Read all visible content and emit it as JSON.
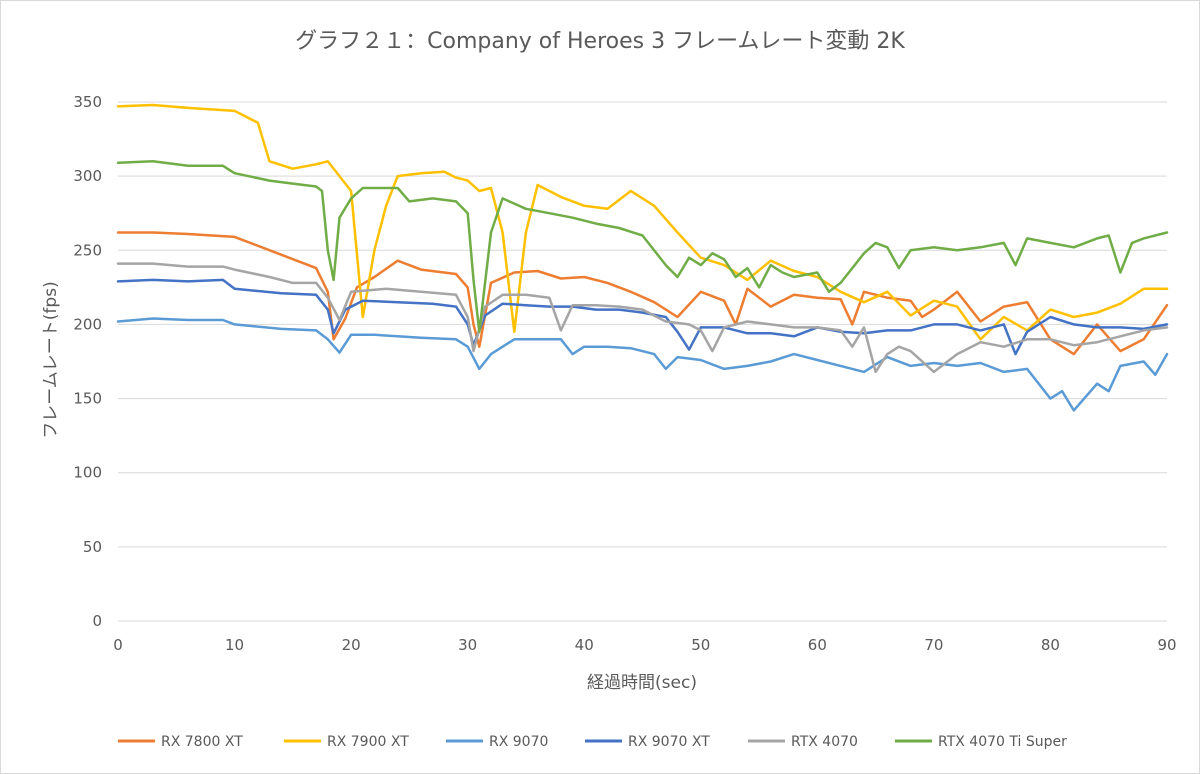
{
  "chart_data": {
    "type": "line",
    "title": "グラフ２１：Company of Heroes 3 フレームレート変動 2K",
    "xlabel": "経過時間(sec)",
    "ylabel": "フレームレート(fps)",
    "xlim": [
      0,
      90
    ],
    "ylim": [
      0,
      350
    ],
    "x_ticks": [
      0,
      10,
      20,
      30,
      40,
      50,
      60,
      70,
      80,
      90
    ],
    "y_ticks": [
      0,
      50,
      100,
      150,
      200,
      250,
      300,
      350
    ],
    "grid": "horizontal",
    "legend_position": "bottom",
    "series": [
      {
        "name": "RX 7800 XT",
        "color": "#ED7D31",
        "points": [
          [
            0,
            262
          ],
          [
            3,
            262
          ],
          [
            6,
            261
          ],
          [
            10,
            259
          ],
          [
            14,
            247
          ],
          [
            17,
            238
          ],
          [
            18,
            222
          ],
          [
            18.5,
            190
          ],
          [
            19.5,
            204
          ],
          [
            20.5,
            225
          ],
          [
            22,
            232
          ],
          [
            24,
            243
          ],
          [
            26,
            237
          ],
          [
            29,
            234
          ],
          [
            30,
            225
          ],
          [
            30.5,
            200
          ],
          [
            31,
            185
          ],
          [
            32,
            228
          ],
          [
            34,
            235
          ],
          [
            36,
            236
          ],
          [
            38,
            231
          ],
          [
            40,
            232
          ],
          [
            42,
            228
          ],
          [
            44,
            222
          ],
          [
            46,
            215
          ],
          [
            48,
            205
          ],
          [
            50,
            222
          ],
          [
            52,
            216
          ],
          [
            53,
            200
          ],
          [
            54,
            224
          ],
          [
            56,
            212
          ],
          [
            58,
            220
          ],
          [
            60,
            218
          ],
          [
            62,
            217
          ],
          [
            63,
            200
          ],
          [
            64,
            222
          ],
          [
            66,
            218
          ],
          [
            68,
            216
          ],
          [
            69,
            205
          ],
          [
            70,
            210
          ],
          [
            72,
            222
          ],
          [
            74,
            202
          ],
          [
            76,
            212
          ],
          [
            78,
            215
          ],
          [
            80,
            190
          ],
          [
            82,
            180
          ],
          [
            84,
            200
          ],
          [
            86,
            182
          ],
          [
            88,
            190
          ],
          [
            90,
            213
          ]
        ]
      },
      {
        "name": "RX 7900 XT",
        "color": "#FFC000",
        "points": [
          [
            0,
            347
          ],
          [
            3,
            348
          ],
          [
            6,
            346
          ],
          [
            10,
            344
          ],
          [
            12,
            336
          ],
          [
            13,
            310
          ],
          [
            15,
            305
          ],
          [
            17,
            308
          ],
          [
            18,
            310
          ],
          [
            19,
            300
          ],
          [
            20,
            290
          ],
          [
            21,
            205
          ],
          [
            22,
            250
          ],
          [
            23,
            280
          ],
          [
            24,
            300
          ],
          [
            26,
            302
          ],
          [
            28,
            303
          ],
          [
            29,
            299
          ],
          [
            30,
            297
          ],
          [
            31,
            290
          ],
          [
            32,
            292
          ],
          [
            33,
            262
          ],
          [
            34,
            195
          ],
          [
            35,
            262
          ],
          [
            36,
            294
          ],
          [
            38,
            286
          ],
          [
            40,
            280
          ],
          [
            42,
            278
          ],
          [
            44,
            290
          ],
          [
            46,
            280
          ],
          [
            48,
            262
          ],
          [
            50,
            245
          ],
          [
            52,
            240
          ],
          [
            54,
            230
          ],
          [
            56,
            243
          ],
          [
            58,
            236
          ],
          [
            60,
            232
          ],
          [
            62,
            222
          ],
          [
            64,
            215
          ],
          [
            66,
            222
          ],
          [
            68,
            206
          ],
          [
            70,
            216
          ],
          [
            72,
            212
          ],
          [
            74,
            190
          ],
          [
            76,
            205
          ],
          [
            78,
            196
          ],
          [
            80,
            210
          ],
          [
            82,
            205
          ],
          [
            84,
            208
          ],
          [
            86,
            214
          ],
          [
            88,
            224
          ],
          [
            90,
            224
          ]
        ]
      },
      {
        "name": "RX 9070",
        "color": "#5B9BD5",
        "points": [
          [
            0,
            202
          ],
          [
            3,
            204
          ],
          [
            6,
            203
          ],
          [
            9,
            203
          ],
          [
            10,
            200
          ],
          [
            14,
            197
          ],
          [
            17,
            196
          ],
          [
            18,
            190
          ],
          [
            19,
            181
          ],
          [
            20,
            193
          ],
          [
            22,
            193
          ],
          [
            24,
            192
          ],
          [
            26,
            191
          ],
          [
            29,
            190
          ],
          [
            30,
            185
          ],
          [
            31,
            170
          ],
          [
            32,
            180
          ],
          [
            34,
            190
          ],
          [
            36,
            190
          ],
          [
            38,
            190
          ],
          [
            39,
            180
          ],
          [
            40,
            185
          ],
          [
            42,
            185
          ],
          [
            44,
            184
          ],
          [
            46,
            180
          ],
          [
            47,
            170
          ],
          [
            48,
            178
          ],
          [
            50,
            176
          ],
          [
            52,
            170
          ],
          [
            54,
            172
          ],
          [
            56,
            175
          ],
          [
            58,
            180
          ],
          [
            60,
            176
          ],
          [
            62,
            172
          ],
          [
            64,
            168
          ],
          [
            66,
            178
          ],
          [
            68,
            172
          ],
          [
            70,
            174
          ],
          [
            72,
            172
          ],
          [
            74,
            174
          ],
          [
            76,
            168
          ],
          [
            78,
            170
          ],
          [
            80,
            150
          ],
          [
            81,
            155
          ],
          [
            82,
            142
          ],
          [
            84,
            160
          ],
          [
            85,
            155
          ],
          [
            86,
            172
          ],
          [
            88,
            175
          ],
          [
            89,
            166
          ],
          [
            90,
            180
          ]
        ]
      },
      {
        "name": "RX 9070 XT",
        "color": "#4472C4",
        "points": [
          [
            0,
            229
          ],
          [
            3,
            230
          ],
          [
            6,
            229
          ],
          [
            9,
            230
          ],
          [
            10,
            224
          ],
          [
            14,
            221
          ],
          [
            17,
            220
          ],
          [
            18,
            210
          ],
          [
            18.5,
            194
          ],
          [
            19.5,
            210
          ],
          [
            21,
            216
          ],
          [
            24,
            215
          ],
          [
            27,
            214
          ],
          [
            29,
            212
          ],
          [
            30,
            200
          ],
          [
            30.5,
            186
          ],
          [
            31.5,
            206
          ],
          [
            33,
            214
          ],
          [
            35,
            213
          ],
          [
            37,
            212
          ],
          [
            39,
            212
          ],
          [
            41,
            210
          ],
          [
            43,
            210
          ],
          [
            45,
            208
          ],
          [
            47,
            205
          ],
          [
            48,
            195
          ],
          [
            49,
            183
          ],
          [
            50,
            198
          ],
          [
            52,
            198
          ],
          [
            54,
            194
          ],
          [
            56,
            194
          ],
          [
            58,
            192
          ],
          [
            60,
            198
          ],
          [
            62,
            195
          ],
          [
            64,
            194
          ],
          [
            66,
            196
          ],
          [
            68,
            196
          ],
          [
            70,
            200
          ],
          [
            72,
            200
          ],
          [
            74,
            196
          ],
          [
            76,
            200
          ],
          [
            77,
            180
          ],
          [
            78,
            195
          ],
          [
            80,
            205
          ],
          [
            82,
            200
          ],
          [
            84,
            198
          ],
          [
            86,
            198
          ],
          [
            88,
            197
          ],
          [
            90,
            200
          ]
        ]
      },
      {
        "name": "RTX 4070",
        "color": "#A5A5A5",
        "points": [
          [
            0,
            241
          ],
          [
            3,
            241
          ],
          [
            6,
            239
          ],
          [
            9,
            239
          ],
          [
            10,
            237
          ],
          [
            13,
            232
          ],
          [
            15,
            228
          ],
          [
            17,
            228
          ],
          [
            18,
            218
          ],
          [
            19,
            203
          ],
          [
            20,
            222
          ],
          [
            23,
            224
          ],
          [
            26,
            222
          ],
          [
            29,
            220
          ],
          [
            30,
            205
          ],
          [
            30.5,
            182
          ],
          [
            31.5,
            212
          ],
          [
            33,
            220
          ],
          [
            35,
            220
          ],
          [
            37,
            218
          ],
          [
            38,
            196
          ],
          [
            39,
            213
          ],
          [
            41,
            213
          ],
          [
            43,
            212
          ],
          [
            45,
            210
          ],
          [
            47,
            202
          ],
          [
            49,
            200
          ],
          [
            50,
            196
          ],
          [
            51,
            182
          ],
          [
            52,
            198
          ],
          [
            54,
            202
          ],
          [
            56,
            200
          ],
          [
            58,
            198
          ],
          [
            60,
            198
          ],
          [
            62,
            196
          ],
          [
            63,
            185
          ],
          [
            64,
            198
          ],
          [
            65,
            168
          ],
          [
            66,
            180
          ],
          [
            67,
            185
          ],
          [
            68,
            182
          ],
          [
            70,
            168
          ],
          [
            72,
            180
          ],
          [
            74,
            188
          ],
          [
            76,
            185
          ],
          [
            78,
            190
          ],
          [
            80,
            190
          ],
          [
            82,
            186
          ],
          [
            84,
            188
          ],
          [
            86,
            192
          ],
          [
            88,
            196
          ],
          [
            90,
            198
          ]
        ]
      },
      {
        "name": "RTX 4070 Ti Super",
        "color": "#70AD47",
        "points": [
          [
            0,
            309
          ],
          [
            3,
            310
          ],
          [
            6,
            307
          ],
          [
            9,
            307
          ],
          [
            10,
            302
          ],
          [
            13,
            297
          ],
          [
            15,
            295
          ],
          [
            17,
            293
          ],
          [
            17.5,
            290
          ],
          [
            18,
            250
          ],
          [
            18.5,
            230
          ],
          [
            19,
            272
          ],
          [
            20,
            285
          ],
          [
            21,
            292
          ],
          [
            24,
            292
          ],
          [
            25,
            283
          ],
          [
            27,
            285
          ],
          [
            29,
            283
          ],
          [
            30,
            275
          ],
          [
            30.5,
            230
          ],
          [
            31,
            195
          ],
          [
            32,
            262
          ],
          [
            33,
            285
          ],
          [
            35,
            278
          ],
          [
            37,
            275
          ],
          [
            39,
            272
          ],
          [
            41,
            268
          ],
          [
            43,
            265
          ],
          [
            45,
            260
          ],
          [
            47,
            240
          ],
          [
            48,
            232
          ],
          [
            49,
            245
          ],
          [
            50,
            240
          ],
          [
            51,
            248
          ],
          [
            52,
            244
          ],
          [
            53,
            232
          ],
          [
            54,
            238
          ],
          [
            55,
            225
          ],
          [
            56,
            240
          ],
          [
            57,
            235
          ],
          [
            58,
            232
          ],
          [
            60,
            235
          ],
          [
            61,
            222
          ],
          [
            62,
            228
          ],
          [
            64,
            248
          ],
          [
            65,
            255
          ],
          [
            66,
            252
          ],
          [
            67,
            238
          ],
          [
            68,
            250
          ],
          [
            70,
            252
          ],
          [
            72,
            250
          ],
          [
            74,
            252
          ],
          [
            76,
            255
          ],
          [
            77,
            240
          ],
          [
            78,
            258
          ],
          [
            80,
            255
          ],
          [
            82,
            252
          ],
          [
            84,
            258
          ],
          [
            85,
            260
          ],
          [
            86,
            235
          ],
          [
            87,
            255
          ],
          [
            88,
            258
          ],
          [
            90,
            262
          ]
        ]
      }
    ]
  }
}
